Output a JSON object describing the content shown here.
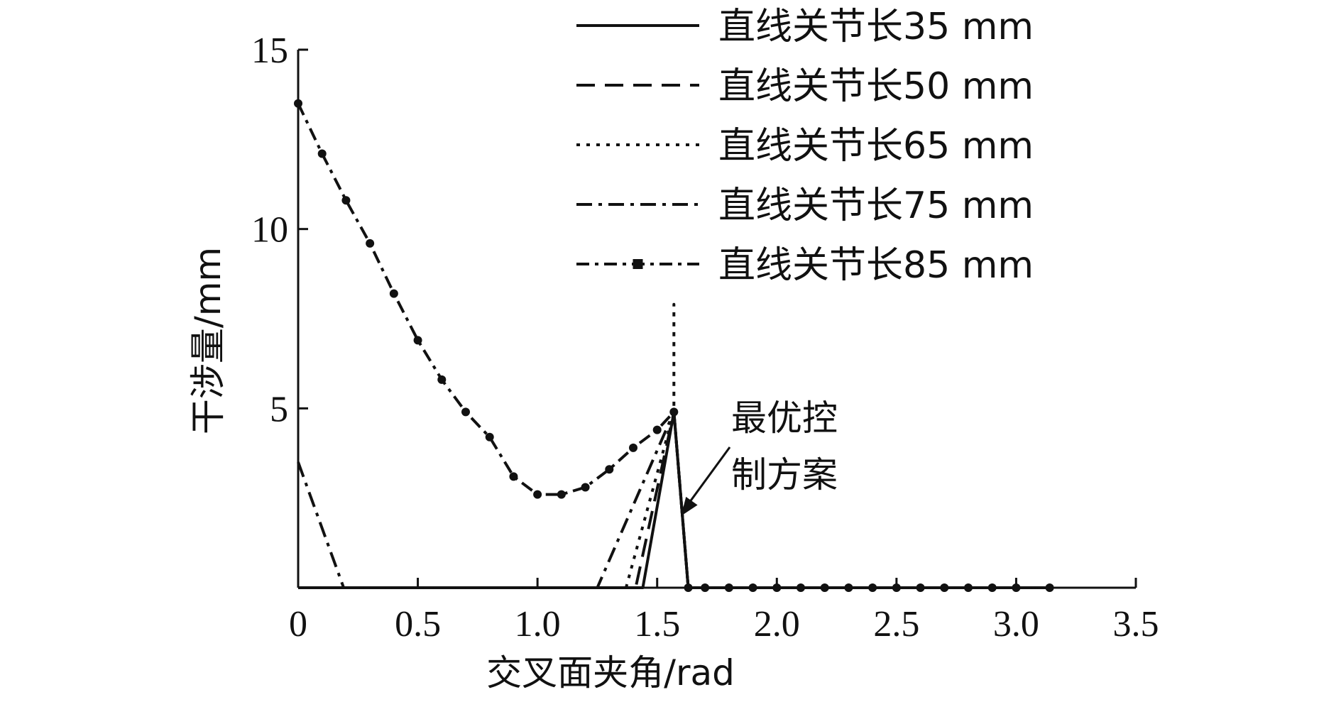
{
  "chart_data": {
    "type": "line",
    "title": "",
    "xlabel": "交叉面夹角/rad",
    "ylabel": "干涉量/mm",
    "xlim": [
      0,
      3.5
    ],
    "ylim": [
      0,
      15
    ],
    "x_ticks": [
      "0",
      "0.5",
      "1.0",
      "1.5",
      "2.0",
      "2.5",
      "3.0",
      "3.5"
    ],
    "y_ticks": [
      "5",
      "10",
      "15"
    ],
    "grid": false,
    "legend_position": "top-right",
    "series": [
      {
        "name": "直线关节长35 mm",
        "style": "solid",
        "x": [
          0,
          0.2,
          1.0,
          1.44,
          1.57,
          1.63,
          2.0,
          3.14
        ],
        "y": [
          0,
          0,
          0,
          0,
          4.9,
          0,
          0,
          0
        ]
      },
      {
        "name": "直线关节长50 mm",
        "style": "dashed",
        "x": [
          0,
          1.0,
          1.41,
          1.57,
          1.63,
          3.14
        ],
        "y": [
          0,
          0,
          0,
          4.9,
          0,
          0
        ]
      },
      {
        "name": "直线关节长65 mm",
        "style": "dotted",
        "x": [
          0,
          1.0,
          1.37,
          1.57,
          1.57,
          1.57,
          1.63,
          3.14
        ],
        "y": [
          0,
          0,
          0,
          4.9,
          7.9,
          4.9,
          0,
          0
        ]
      },
      {
        "name": "直线关节长75 mm",
        "style": "dash-dot",
        "x": [
          0,
          0.19,
          1.0,
          1.25,
          1.57,
          1.63,
          3.14
        ],
        "y": [
          3.5,
          0,
          0,
          0,
          4.9,
          0,
          0
        ]
      },
      {
        "name": "直线关节长85 mm",
        "style": "dash-dot-marker",
        "x": [
          0,
          0.1,
          0.2,
          0.3,
          0.4,
          0.5,
          0.6,
          0.7,
          0.8,
          0.9,
          1.0,
          1.1,
          1.2,
          1.3,
          1.4,
          1.5,
          1.57,
          1.63,
          1.7,
          1.8,
          1.9,
          2.0,
          2.1,
          2.2,
          2.3,
          2.4,
          2.5,
          2.6,
          2.7,
          2.8,
          2.9,
          3.0,
          3.14
        ],
        "y": [
          13.5,
          12.1,
          10.8,
          9.6,
          8.2,
          6.9,
          5.8,
          4.9,
          4.2,
          3.1,
          2.6,
          2.6,
          2.8,
          3.3,
          3.9,
          4.4,
          4.9,
          0,
          0,
          0,
          0,
          0,
          0,
          0,
          0,
          0,
          0,
          0,
          0,
          0,
          0,
          0,
          0
        ]
      }
    ],
    "annotations": [
      {
        "text_line1": "最优控",
        "text_line2": "制方案",
        "points_to": {
          "x": 1.6,
          "y": 2.0
        }
      }
    ]
  }
}
